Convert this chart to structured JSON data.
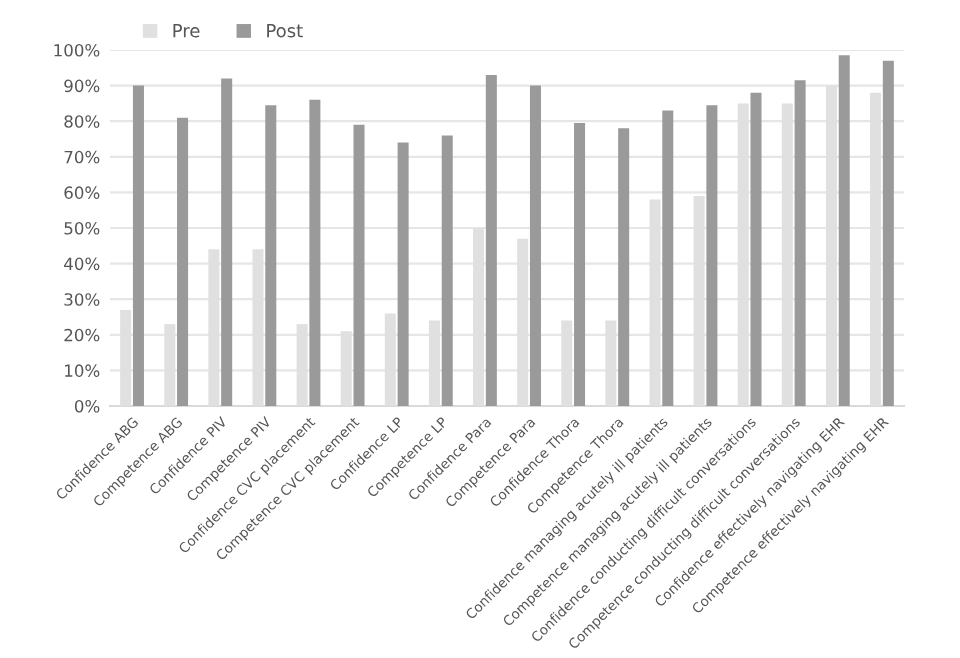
{
  "chart_data": {
    "type": "bar",
    "categories": [
      "Confidence ABG",
      "Competence ABG",
      "Confidence PIV",
      "Competence PIV",
      "Confidence CVC placement",
      "Competence CVC placement",
      "Confidence LP",
      "Competence LP",
      "Confidence Para",
      "Competence Para",
      "Confidence Thora",
      "Competence Thora",
      "Confidence managing acutely ill patients",
      "Competence managing acutely ill patients",
      "Confidence conducting difficult conversations",
      "Competence conducting difficult conversations",
      "Confidence effectively navigating EHR",
      "Competence effectively navigating EHR"
    ],
    "series": [
      {
        "name": "Pre",
        "color": "#e0e0e0",
        "values": [
          27,
          23,
          44,
          44,
          23,
          21,
          26,
          24,
          50,
          47,
          24,
          24,
          58,
          59,
          85,
          85,
          90,
          88
        ]
      },
      {
        "name": "Post",
        "color": "#9a9a9a",
        "values": [
          90,
          81,
          92,
          84.5,
          86,
          79,
          74,
          76,
          93,
          90,
          79.5,
          78,
          83,
          84.5,
          88,
          91.5,
          98.5,
          97
        ]
      }
    ],
    "ylim": [
      0,
      100
    ],
    "yticks": [
      {
        "value": 0,
        "label": "0%"
      },
      {
        "value": 10,
        "label": "10%"
      },
      {
        "value": 20,
        "label": "20%"
      },
      {
        "value": 30,
        "label": "30%"
      },
      {
        "value": 40,
        "label": "40%"
      },
      {
        "value": 50,
        "label": "50%"
      },
      {
        "value": 60,
        "label": "60%"
      },
      {
        "value": 70,
        "label": "70%"
      },
      {
        "value": 80,
        "label": "80%"
      },
      {
        "value": 90,
        "label": "90%"
      },
      {
        "value": 100,
        "label": "100%"
      }
    ],
    "grid": "y",
    "legend": "top left"
  }
}
